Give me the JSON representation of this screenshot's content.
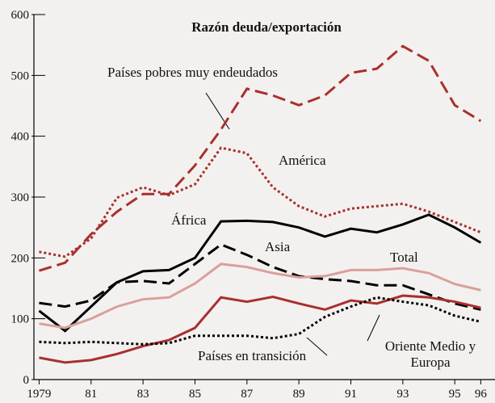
{
  "chart_data": {
    "type": "line",
    "title": "Razón deuda/exportación",
    "x": [
      1979,
      1980,
      1981,
      1982,
      1983,
      1984,
      1985,
      1986,
      1987,
      1988,
      1989,
      1990,
      1991,
      1992,
      1993,
      1994,
      1995,
      1996
    ],
    "xlim": [
      1978.8,
      1996.3
    ],
    "xticks": [
      1979,
      {
        "value": 1981,
        "label": "81"
      },
      {
        "value": 1983,
        "label": "83"
      },
      {
        "value": 1985,
        "label": "85"
      },
      {
        "value": 1987,
        "label": "87"
      },
      {
        "value": 1989,
        "label": "89"
      },
      {
        "value": 1991,
        "label": "91"
      },
      {
        "value": 1993,
        "label": "93"
      },
      {
        "value": 1995,
        "label": "95"
      },
      {
        "value": 1996,
        "label": "96"
      }
    ],
    "ylim": [
      0,
      600
    ],
    "yticks": [
      0,
      100,
      200,
      300,
      400,
      500,
      600
    ],
    "series": [
      {
        "name": "Países pobres muy endeudados",
        "color": "#a8302e",
        "dash": "dashed",
        "values": [
          179,
          192,
          239,
          276,
          305,
          305,
          352,
          411,
          478,
          467,
          451,
          467,
          504,
          511,
          548,
          524,
          451,
          425
        ]
      },
      {
        "name": "América",
        "color": "#a8302e",
        "dash": "dotted",
        "values": [
          210,
          202,
          232,
          299,
          316,
          303,
          321,
          381,
          372,
          316,
          285,
          268,
          281,
          285,
          289,
          276,
          259,
          242
        ]
      },
      {
        "name": "África",
        "color": "#000000",
        "dash": "solid",
        "values": [
          113,
          80,
          120,
          160,
          178,
          180,
          200,
          260,
          261,
          259,
          250,
          235,
          248,
          242,
          255,
          271,
          250,
          225
        ]
      },
      {
        "name": "Asia",
        "color": "#000000",
        "dash": "dashed",
        "values": [
          126,
          120,
          130,
          160,
          162,
          158,
          190,
          222,
          205,
          185,
          170,
          165,
          162,
          155,
          155,
          140,
          125,
          115
        ]
      },
      {
        "name": "Total",
        "color": "#d9a09c",
        "dash": "solid",
        "values": [
          92,
          85,
          100,
          120,
          132,
          135,
          158,
          190,
          185,
          175,
          168,
          170,
          180,
          180,
          183,
          175,
          157,
          147
        ]
      },
      {
        "name": "Oriente Medio y Europa",
        "color": "#a8302e",
        "dash": "solid",
        "values": [
          36,
          28,
          32,
          42,
          55,
          65,
          85,
          135,
          128,
          136,
          125,
          115,
          130,
          125,
          138,
          135,
          128,
          118
        ]
      },
      {
        "name": "Países en transición",
        "color": "#000000",
        "dash": "dotted",
        "values": [
          62,
          60,
          62,
          60,
          58,
          60,
          72,
          72,
          72,
          68,
          75,
          103,
          120,
          135,
          128,
          122,
          105,
          95
        ]
      }
    ]
  }
}
